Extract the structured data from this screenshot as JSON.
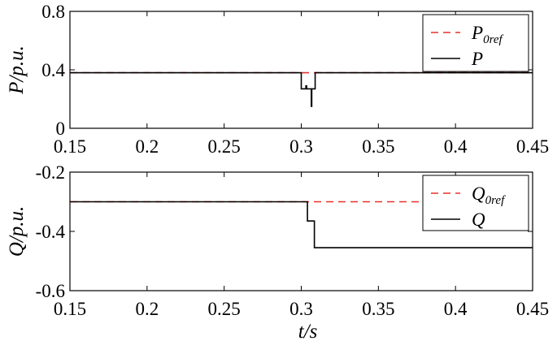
{
  "chart_data": [
    {
      "type": "line",
      "ylabel": "P/p.u.",
      "xlim": [
        0.15,
        0.45
      ],
      "ylim": [
        0,
        0.8
      ],
      "xticks": [
        "0.15",
        "0.2",
        "0.25",
        "0.3",
        "0.35",
        "0.4",
        "0.45"
      ],
      "yticks": [
        "0",
        "0.4",
        "0.8"
      ],
      "legend": "top-right",
      "series": [
        {
          "name": "P",
          "sub": "",
          "color": "#000000",
          "dash": "solid",
          "x": [
            0.15,
            0.3,
            0.3,
            0.303,
            0.303,
            0.3035,
            0.3035,
            0.3065,
            0.3065,
            0.3068,
            0.3068,
            0.309,
            0.309,
            0.45
          ],
          "y": [
            0.38,
            0.38,
            0.27,
            0.27,
            0.29,
            0.29,
            0.27,
            0.27,
            0.15,
            0.15,
            0.27,
            0.27,
            0.38,
            0.38
          ]
        },
        {
          "name": "P",
          "sub": "0ref",
          "color": "#e8302a",
          "dash": "dashed",
          "x": [
            0.15,
            0.45
          ],
          "y": [
            0.38,
            0.38
          ]
        }
      ]
    },
    {
      "type": "line",
      "ylabel": "Q/p.u.",
      "xlabel": "t/s",
      "xlim": [
        0.15,
        0.45
      ],
      "ylim": [
        -0.6,
        -0.2
      ],
      "xticks": [
        "0.15",
        "0.2",
        "0.25",
        "0.3",
        "0.35",
        "0.4",
        "0.45"
      ],
      "yticks": [
        "-0.2",
        "-0.4",
        "-0.6"
      ],
      "legend": "top-right",
      "series": [
        {
          "name": "Q",
          "sub": "0ref",
          "color": "#e8302a",
          "dash": "dashed",
          "x": [
            0.15,
            0.45
          ],
          "y": [
            -0.3,
            -0.3
          ]
        },
        {
          "name": "Q",
          "sub": "",
          "color": "#000000",
          "dash": "solid",
          "x": [
            0.15,
            0.304,
            0.304,
            0.3085,
            0.3085,
            0.45
          ],
          "y": [
            -0.3,
            -0.3,
            -0.365,
            -0.365,
            -0.455,
            -0.455
          ]
        }
      ]
    }
  ]
}
